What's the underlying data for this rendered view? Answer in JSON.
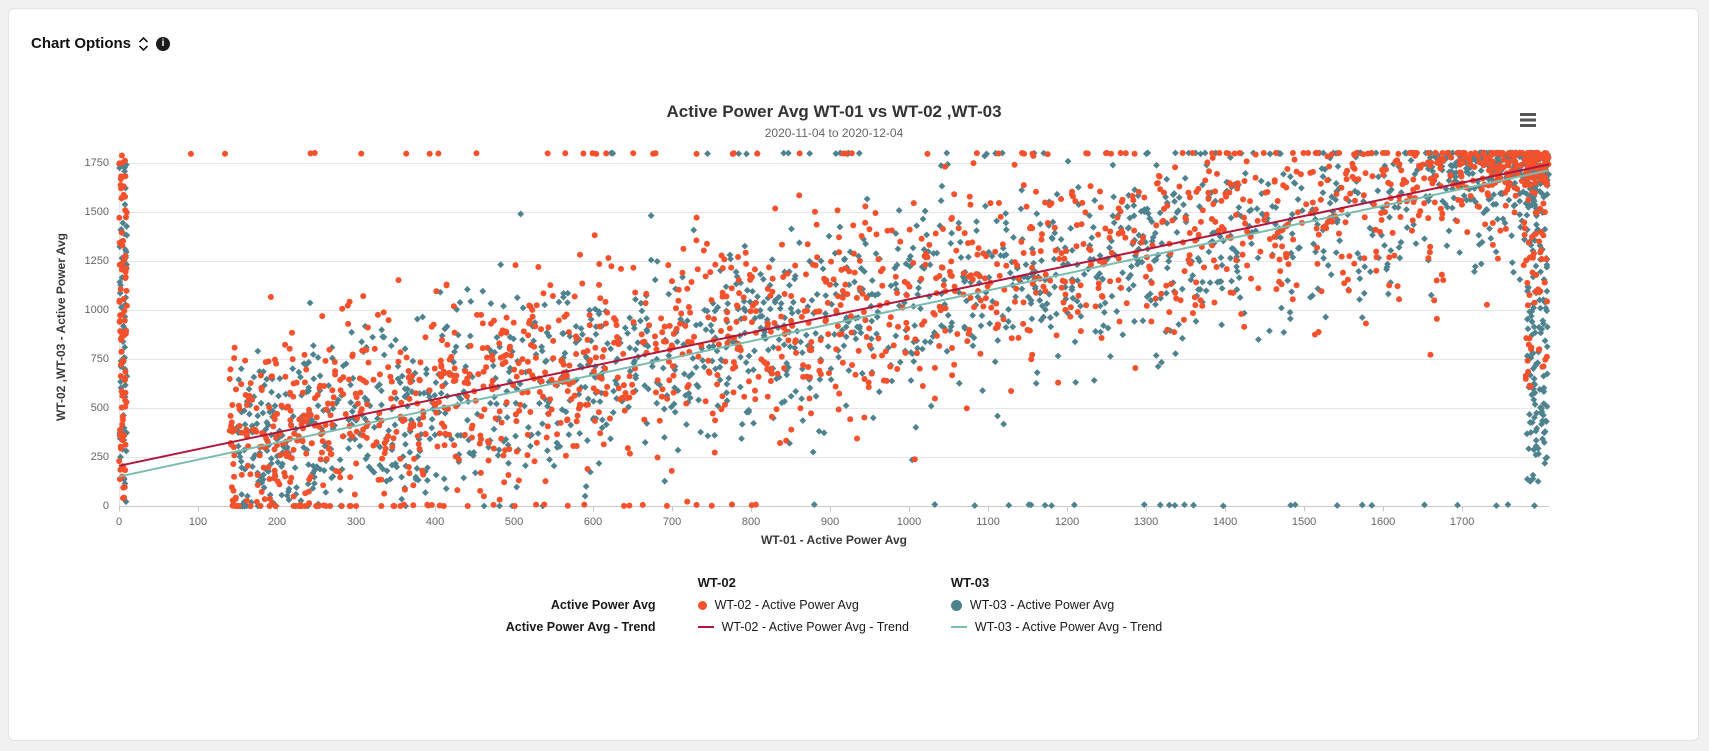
{
  "header": {
    "chart_options_label": "Chart Options",
    "info_glyph": "i"
  },
  "icons": {
    "chart_options_expand": "chevron-up-down",
    "info": "info-circle",
    "chart_menu": "hamburger"
  },
  "chart_data": {
    "type": "scatter",
    "title": "Active Power Avg WT-01 vs WT-02 ,WT-03",
    "subtitle": "2020-11-04 to 2020-12-04",
    "xlabel": "WT-01 - Active Power Avg",
    "ylabel": "WT-02 ,WT-03 - Active Power Avg",
    "xlim": [
      0,
      1810
    ],
    "ylim": [
      0,
      1810
    ],
    "marker_y_max": 1800,
    "x_ticks": [
      0,
      100,
      200,
      300,
      400,
      500,
      600,
      700,
      800,
      900,
      1000,
      1100,
      1200,
      1300,
      1400,
      1500,
      1600,
      1700
    ],
    "y_ticks": [
      0,
      250,
      500,
      750,
      1000,
      1250,
      1500,
      1750
    ],
    "grid": "horizontal-only",
    "legend_position": "bottom",
    "colors": {
      "wt02_scatter": "#f4512c",
      "wt03_scatter": "#4d828e",
      "wt02_trend": "#b0173a",
      "wt03_trend": "#7bbcad",
      "grid_line": "#e6e6e6",
      "axis_line": "#c8c8c8",
      "tick_label": "#666666"
    },
    "series": [
      {
        "name": "WT-02 - Active Power Avg",
        "chart_type": "scatter",
        "marker": "circle",
        "marker_radius": 3,
        "color_key": "wt02_scatter",
        "seed": 20201104,
        "trend": {
          "intercept": 205,
          "slope": 0.849
        },
        "clusters": [
          {
            "kind": "trend",
            "count": 1500,
            "x_min": 140,
            "x_span": 1660,
            "x_pow": 1.3,
            "noise": 265
          },
          {
            "kind": "uniform",
            "count": 90,
            "x_min": 0,
            "x_span": 10,
            "y_min": 20,
            "y_span": 1780
          },
          {
            "kind": "uniform",
            "count": 45,
            "x_min": 90,
            "x_span": 1700,
            "y_min": 1795,
            "y_span": 5
          },
          {
            "kind": "uniform",
            "count": 22,
            "x_min": 170,
            "x_span": 740,
            "y_min": 0,
            "y_span": 8
          },
          {
            "kind": "uniform",
            "count": 60,
            "x_min": 1780,
            "x_span": 28,
            "y_min": 600,
            "y_span": 1200
          },
          {
            "kind": "corner",
            "count": 150,
            "x_min": 1550,
            "x_span": 260,
            "x_pow": 0.45,
            "y_min": 1580,
            "y_span": 222,
            "y_pow": 0.5
          }
        ]
      },
      {
        "name": "WT-03 - Active Power Avg",
        "chart_type": "scatter",
        "marker": "diamond",
        "marker_radius": 3.4,
        "color_key": "wt03_scatter",
        "seed": 20201204,
        "trend": {
          "intercept": 150,
          "slope": 0.863
        },
        "clusters": [
          {
            "kind": "trend",
            "count": 1500,
            "x_min": 150,
            "x_span": 1650,
            "x_pow": 1.25,
            "noise": 255
          },
          {
            "kind": "uniform",
            "count": 70,
            "x_min": 0,
            "x_span": 10,
            "y_min": 0,
            "y_span": 1800
          },
          {
            "kind": "uniform",
            "count": 35,
            "x_min": 600,
            "x_span": 1200,
            "y_min": 1795,
            "y_span": 5
          },
          {
            "kind": "uniform",
            "count": 26,
            "x_min": 740,
            "x_span": 1060,
            "y_min": 0,
            "y_span": 8
          },
          {
            "kind": "uniform",
            "count": 150,
            "x_min": 1782,
            "x_span": 26,
            "y_min": 120,
            "y_span": 1680
          },
          {
            "kind": "corner",
            "count": 200,
            "x_min": 1600,
            "x_span": 210,
            "x_pow": 0.4,
            "y_min": 1520,
            "y_span": 282,
            "y_pow": 0.45
          }
        ]
      },
      {
        "name": "WT-02 - Active Power Avg - Trend",
        "chart_type": "line",
        "color_key": "wt02_trend",
        "line_width": 2,
        "points": [
          [
            0,
            205
          ],
          [
            1810,
            1742
          ]
        ]
      },
      {
        "name": "WT-03 - Active Power Avg - Trend",
        "chart_type": "line",
        "color_key": "wt03_trend",
        "line_width": 2,
        "points": [
          [
            0,
            150
          ],
          [
            1810,
            1712
          ]
        ]
      }
    ],
    "legend": {
      "group_headers": [
        "WT-02",
        "WT-03"
      ],
      "row_labels": [
        "Active Power Avg",
        "Active Power Avg - Trend"
      ],
      "items": {
        "wt02_scatter": "WT-02 - Active Power Avg",
        "wt03_scatter": "WT-03 - Active Power Avg",
        "wt02_trend": "WT-02 - Active Power Avg - Trend",
        "wt03_trend": "WT-03 - Active Power Avg - Trend"
      }
    }
  }
}
